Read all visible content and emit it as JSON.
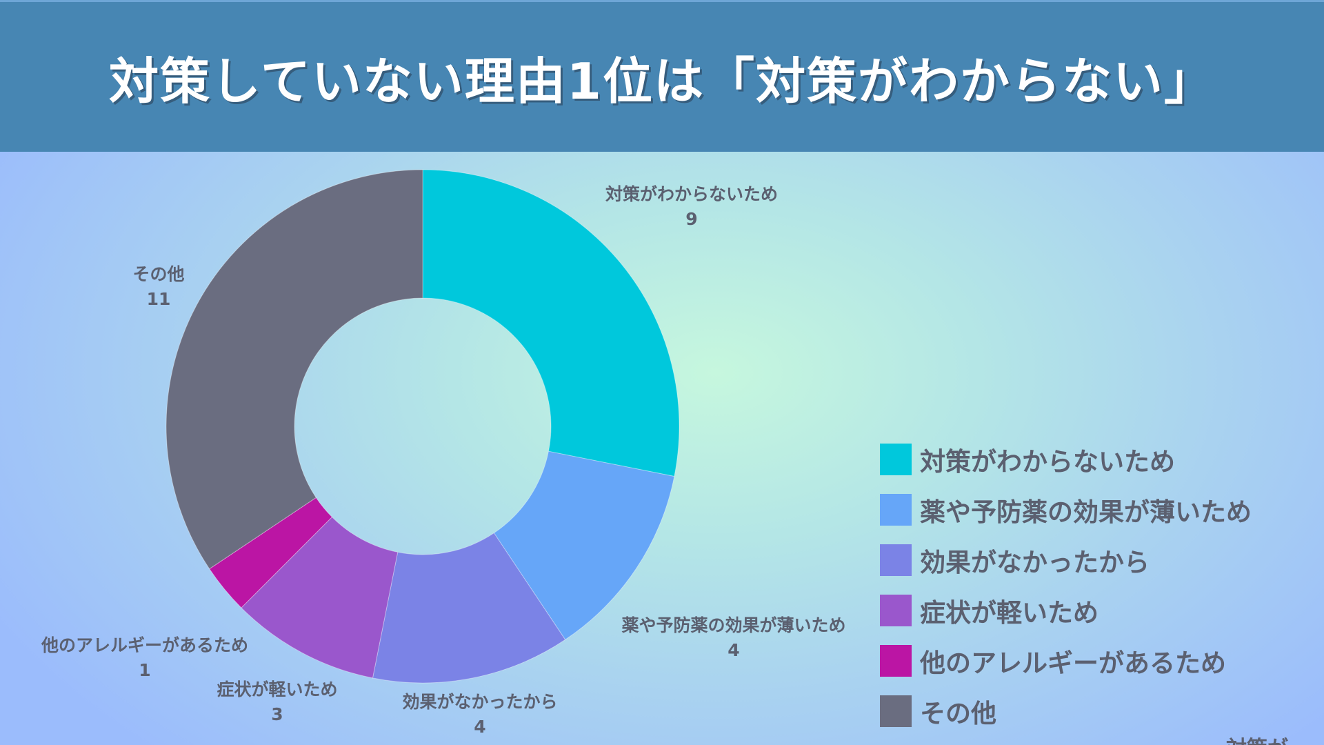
{
  "header": {
    "title": "対策していない理由1位は「対策がわからない」"
  },
  "chart_data": {
    "type": "pie",
    "donut": true,
    "categories": [
      "対策がわからないため",
      "薬や予防薬の効果が薄いため",
      "効果がなかったから",
      "症状が軽いため",
      "他のアレルギーがあるため",
      "その他"
    ],
    "values": [
      9,
      4,
      4,
      3,
      1,
      11
    ],
    "colors": [
      "#00c8dc",
      "#66a6f8",
      "#7b83e6",
      "#9a57cc",
      "#bb15a4",
      "#6a6d80"
    ],
    "legend_position": "right"
  },
  "watermark": "対策が"
}
